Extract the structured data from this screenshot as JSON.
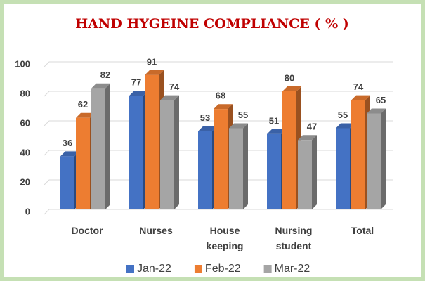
{
  "chart_data": {
    "type": "bar",
    "title": "HAND HYGEINE COMPLIANCE ( % )",
    "categories": [
      "Doctor",
      "Nurses",
      "House keeping",
      "Nursing student",
      "Total"
    ],
    "series": [
      {
        "name": "Jan-22",
        "color": "#4472c4",
        "values": [
          36,
          77,
          53,
          51,
          55
        ]
      },
      {
        "name": "Feb-22",
        "color": "#ed7d31",
        "values": [
          62,
          91,
          68,
          80,
          74
        ]
      },
      {
        "name": "Mar-22",
        "color": "#a5a5a5",
        "values": [
          82,
          74,
          55,
          47,
          65
        ]
      }
    ],
    "ylim": [
      0,
      100
    ],
    "yticks": [
      0,
      20,
      40,
      60,
      80,
      100
    ],
    "grid": true,
    "legend": "bottom"
  }
}
